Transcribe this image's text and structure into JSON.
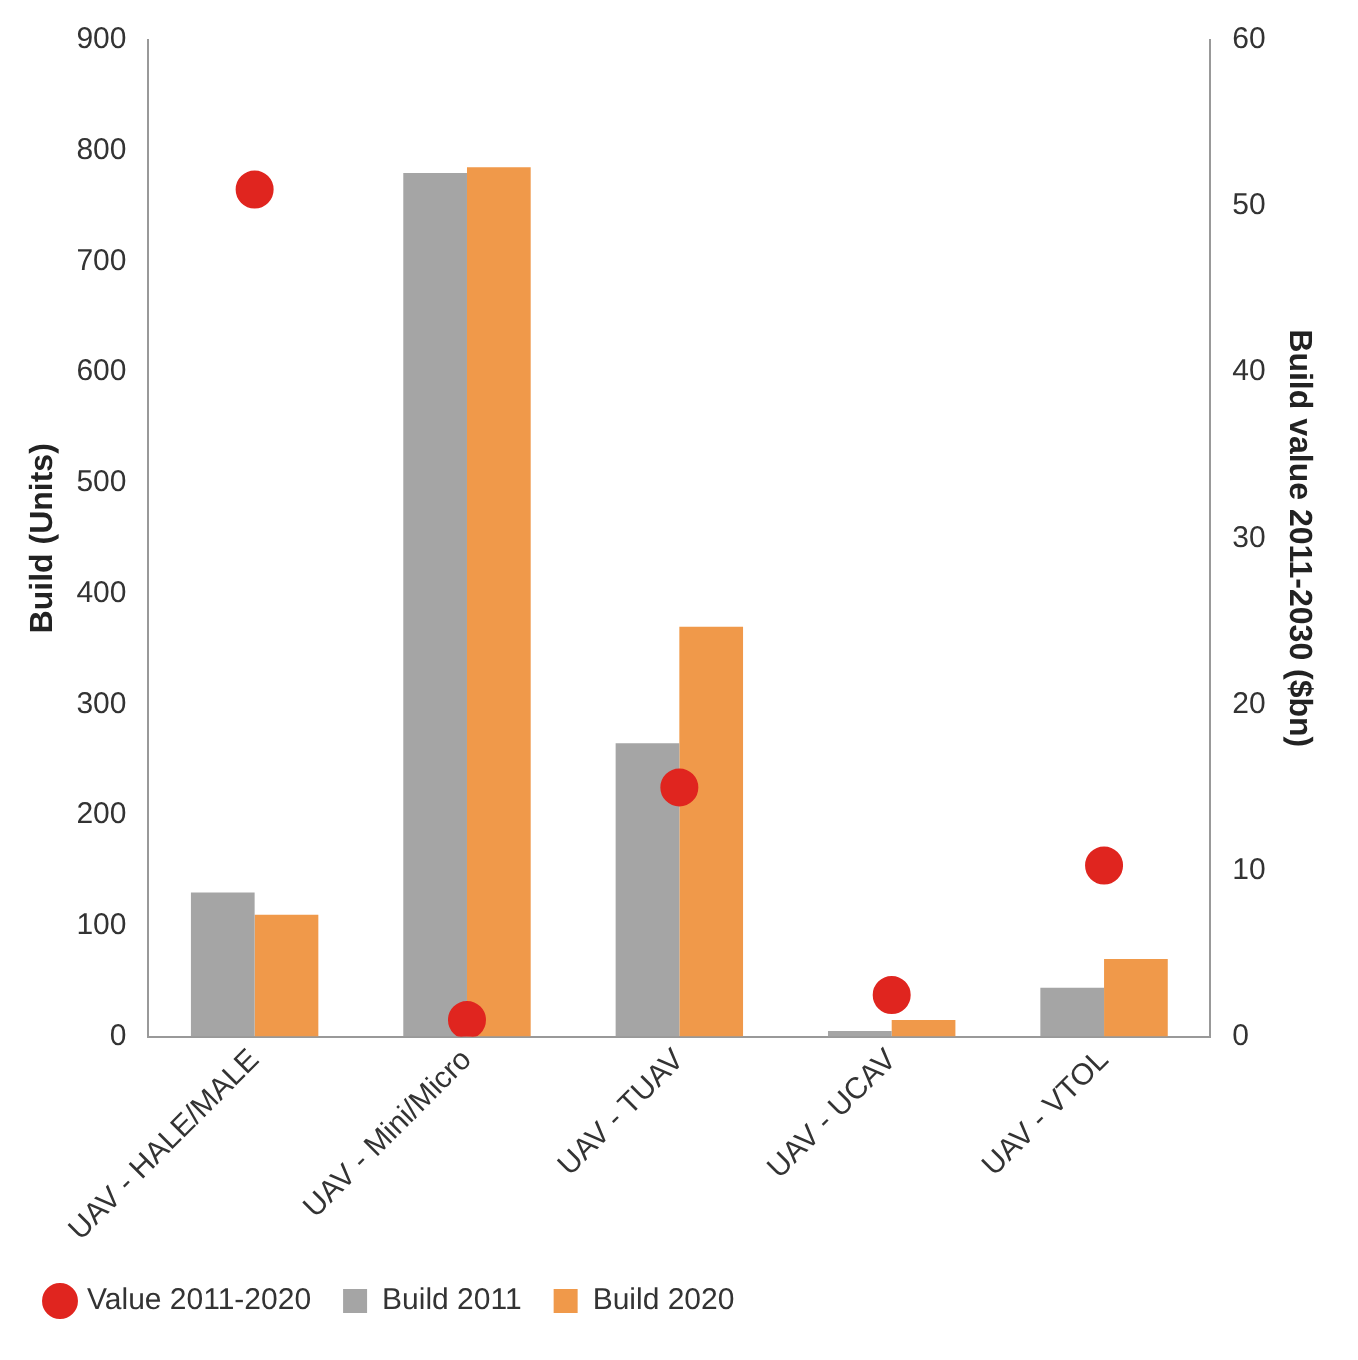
{
  "chart_data": {
    "type": "bar",
    "categories": [
      "UAV - HALE/MALE",
      "UAV - Mini/Micro",
      "UAV - TUAV",
      "UAV - UCAV",
      "UAV - VTOL"
    ],
    "ylabel": "Build (Units)",
    "y2label": "Build value 2011-2030 ($bn)",
    "ylim": [
      0,
      900
    ],
    "yticks": [
      0,
      100,
      200,
      300,
      400,
      500,
      600,
      700,
      800,
      900
    ],
    "y2lim": [
      0,
      60
    ],
    "y2ticks": [
      0,
      10,
      20,
      30,
      40,
      50,
      60
    ],
    "grid": false,
    "legend": "bottom",
    "series": [
      {
        "name": "Build 2011",
        "color": "#a5a5a5",
        "values": [
          130,
          780,
          265,
          5,
          44
        ]
      },
      {
        "name": "Build 2020",
        "color": "#f0994a",
        "values": [
          110,
          785,
          370,
          15,
          70
        ]
      },
      {
        "name": "Value 2011-2020",
        "type": "scatter",
        "axis": "y2",
        "marker": "circle",
        "color": "#e0251f",
        "values": [
          51,
          1,
          15,
          2.5,
          10.3
        ]
      }
    ]
  }
}
